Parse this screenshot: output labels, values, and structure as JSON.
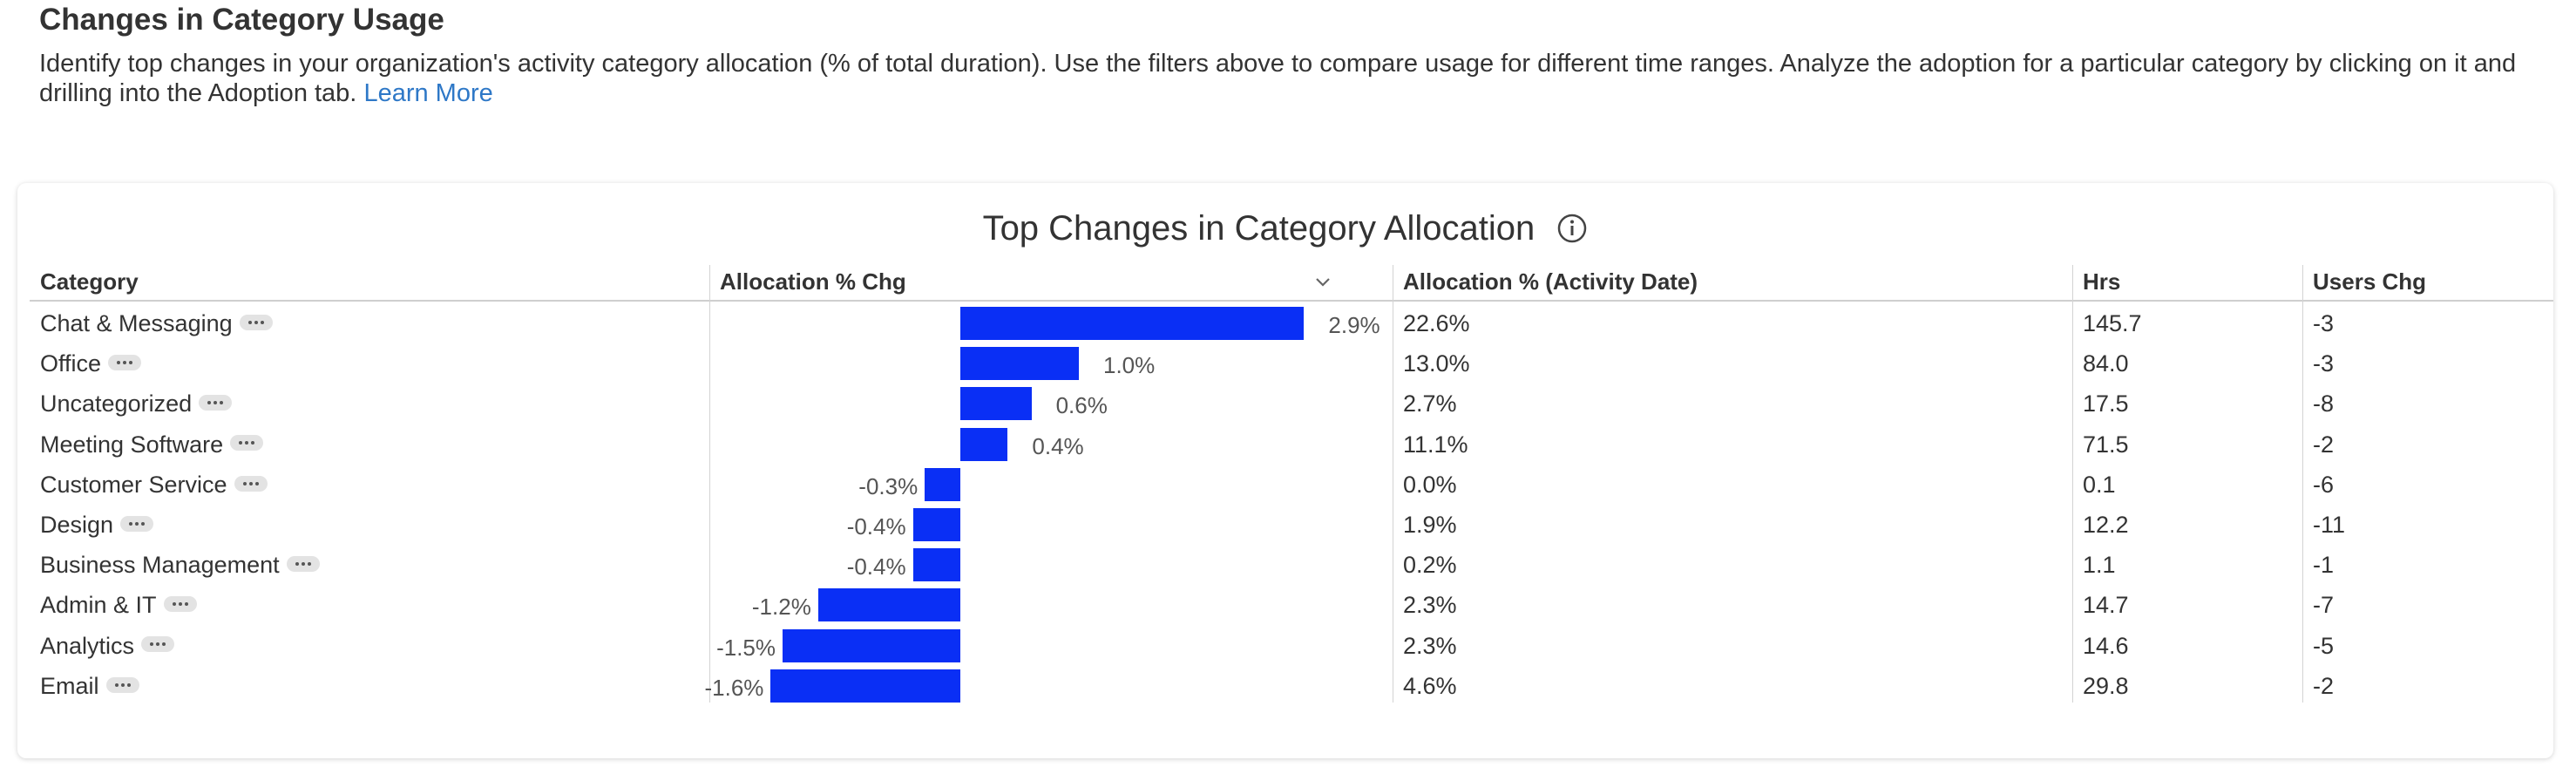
{
  "header": {
    "title": "Changes in Category Usage",
    "description": "Identify top changes in your organization's activity category allocation (% of total duration). Use the filters above to compare usage for different time ranges. Analyze the adoption for a particular category by clicking on it and drilling into the Adoption tab.",
    "learn_more": "Learn More"
  },
  "card": {
    "title": "Top Changes in Category Allocation",
    "info_icon": "info-circle-icon"
  },
  "columns": {
    "category": "Category",
    "allocation_chg": "Allocation % Chg",
    "allocation_activity": "Allocation % (Activity Date)",
    "hrs": "Hrs",
    "users_chg": "Users Chg"
  },
  "sort_icon": "chevron-down-icon",
  "colors": {
    "bar": "#0a2ff5",
    "link": "#2e78c7"
  },
  "rows": [
    {
      "category": "Chat & Messaging",
      "chg": 2.9,
      "chg_label": "2.9%",
      "allocation": "22.6%",
      "hrs": "145.7",
      "users_chg": "-3"
    },
    {
      "category": "Office",
      "chg": 1.0,
      "chg_label": "1.0%",
      "allocation": "13.0%",
      "hrs": "84.0",
      "users_chg": "-3"
    },
    {
      "category": "Uncategorized",
      "chg": 0.6,
      "chg_label": "0.6%",
      "allocation": "2.7%",
      "hrs": "17.5",
      "users_chg": "-8"
    },
    {
      "category": "Meeting Software",
      "chg": 0.4,
      "chg_label": "0.4%",
      "allocation": "11.1%",
      "hrs": "71.5",
      "users_chg": "-2"
    },
    {
      "category": "Customer Service",
      "chg": -0.3,
      "chg_label": "-0.3%",
      "allocation": "0.0%",
      "hrs": "0.1",
      "users_chg": "-6"
    },
    {
      "category": "Design",
      "chg": -0.4,
      "chg_label": "-0.4%",
      "allocation": "1.9%",
      "hrs": "12.2",
      "users_chg": "-11"
    },
    {
      "category": "Business Management",
      "chg": -0.4,
      "chg_label": "-0.4%",
      "allocation": "0.2%",
      "hrs": "1.1",
      "users_chg": "-1"
    },
    {
      "category": "Admin & IT",
      "chg": -1.2,
      "chg_label": "-1.2%",
      "allocation": "2.3%",
      "hrs": "14.7",
      "users_chg": "-7"
    },
    {
      "category": "Analytics",
      "chg": -1.5,
      "chg_label": "-1.5%",
      "allocation": "2.3%",
      "hrs": "14.6",
      "users_chg": "-5"
    },
    {
      "category": "Email",
      "chg": -1.6,
      "chg_label": "-1.6%",
      "allocation": "4.6%",
      "hrs": "29.8",
      "users_chg": "-2"
    }
  ]
}
